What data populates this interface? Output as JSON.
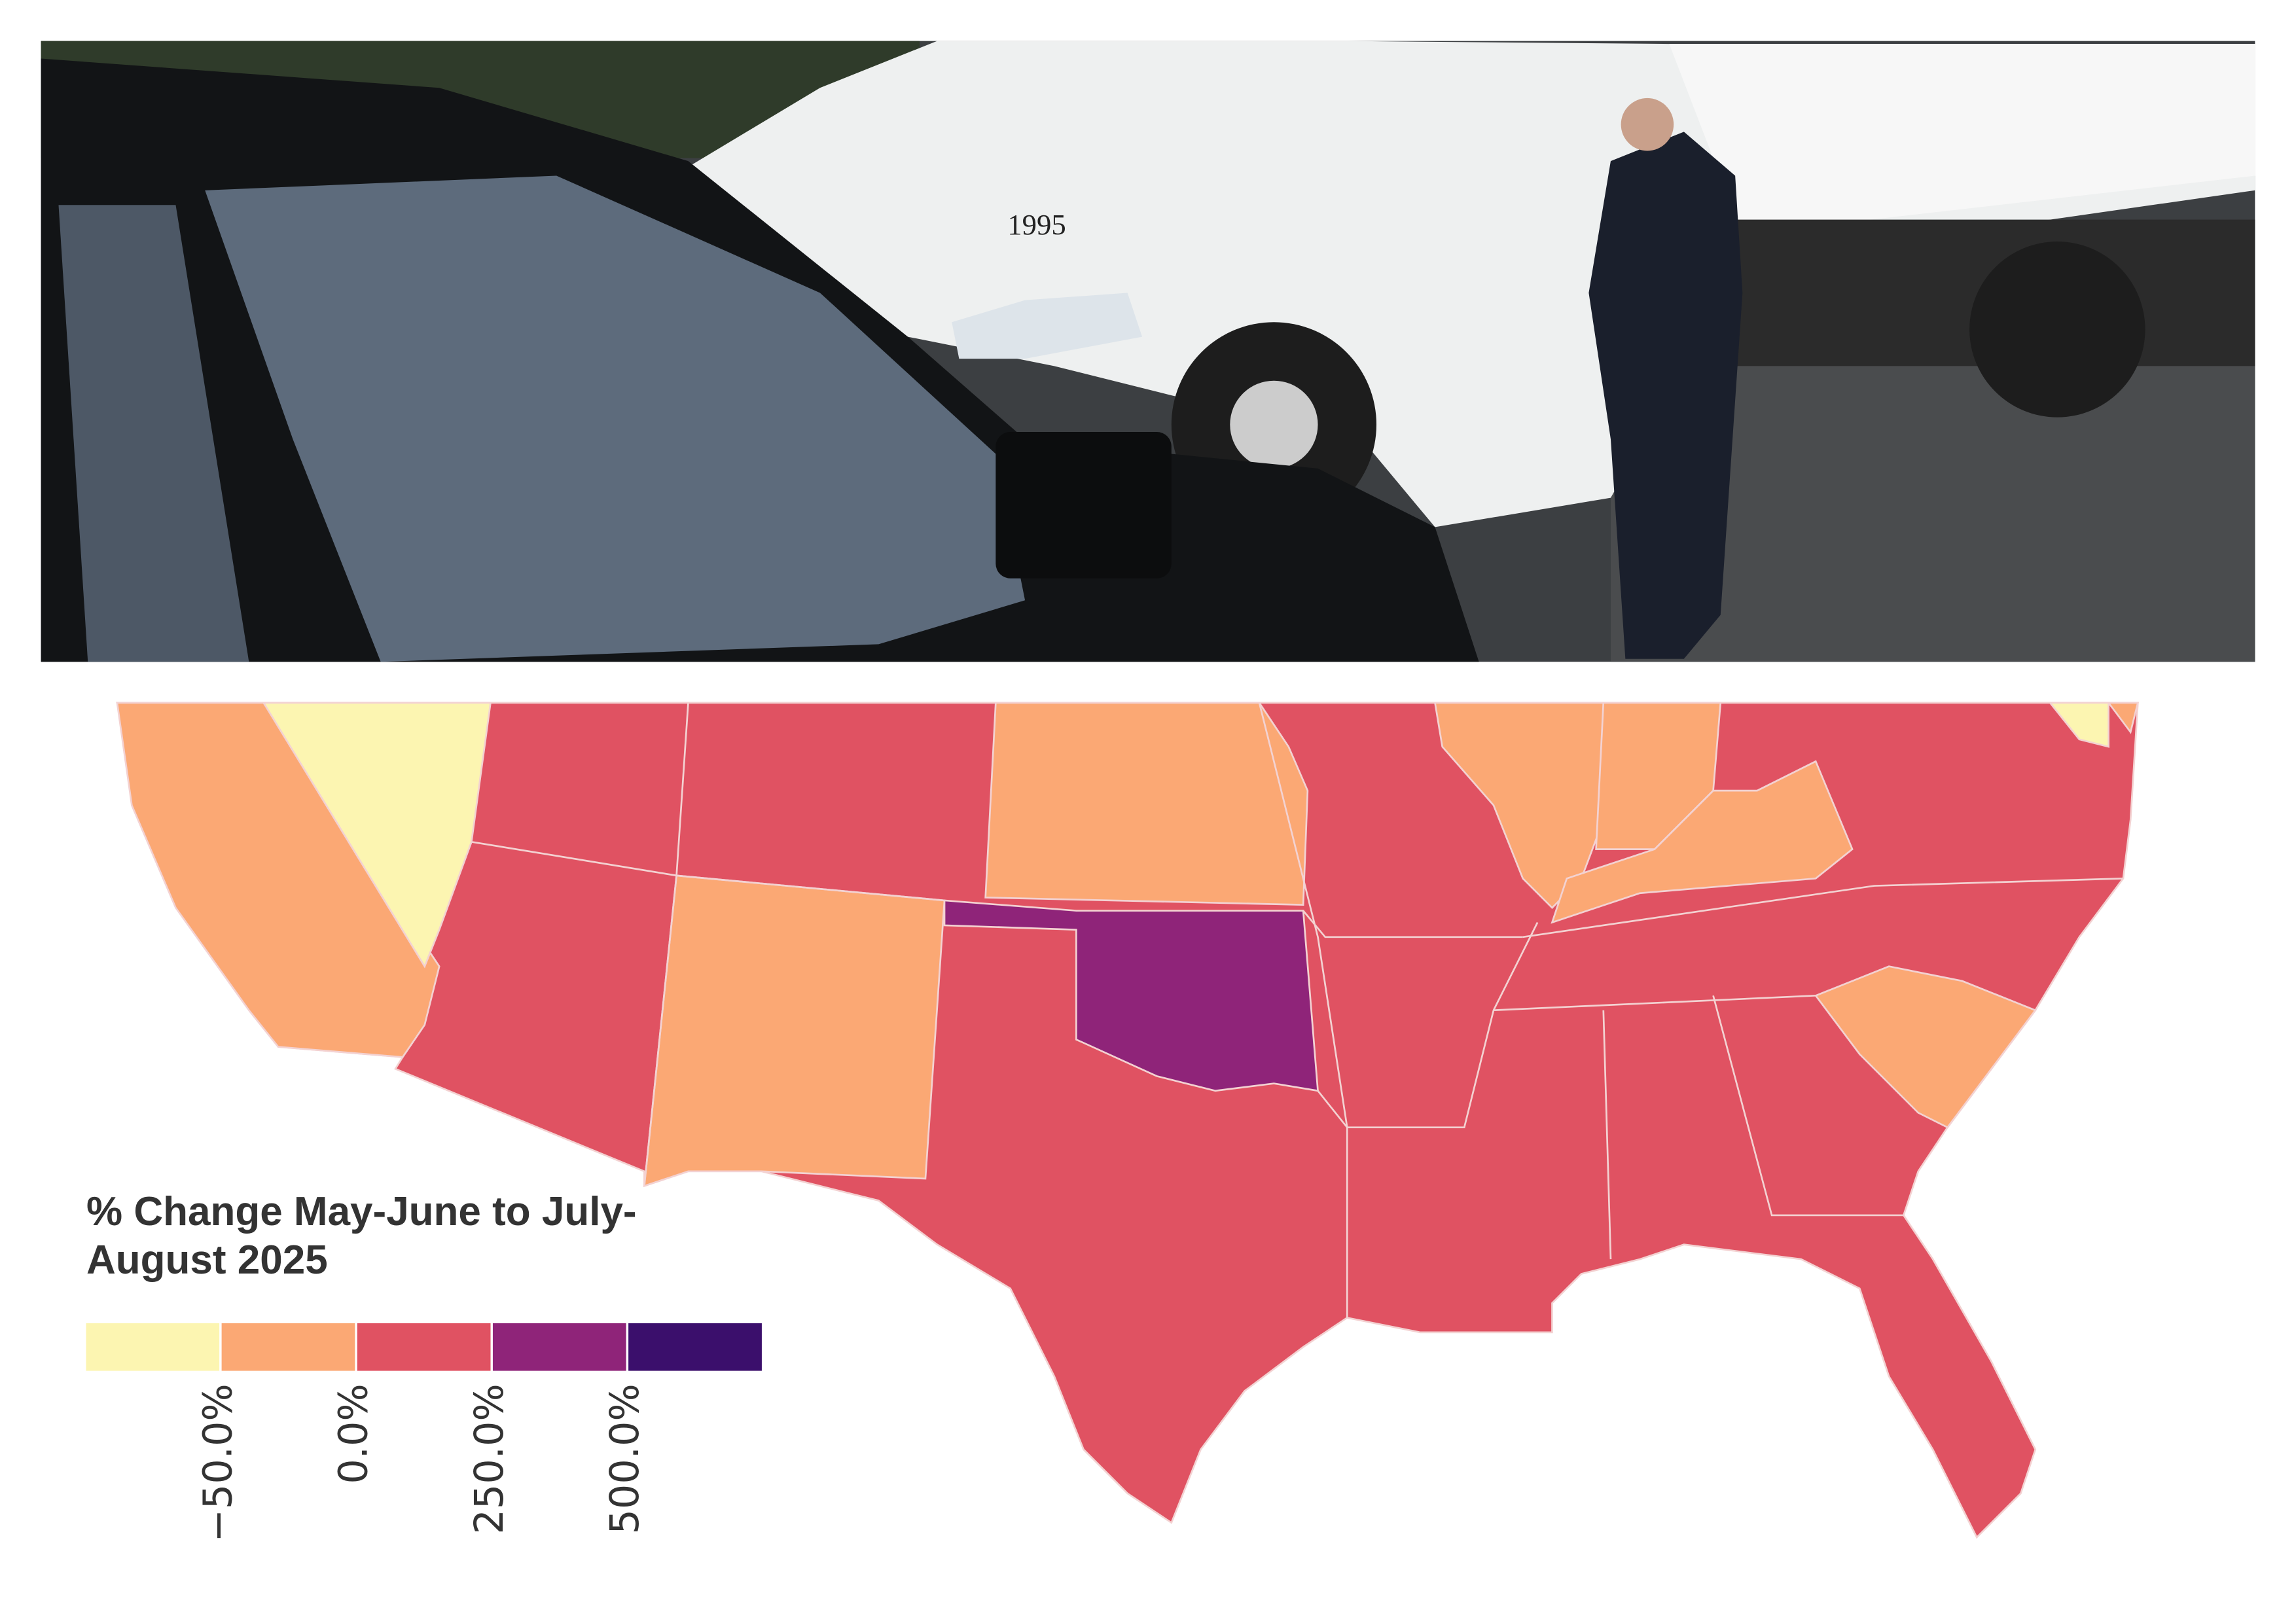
{
  "photo": {
    "truck_number": "1995"
  },
  "legend": {
    "title": "% Change May-June to July-August 2025",
    "colors": [
      "#fcf5b1",
      "#fba874",
      "#e05262",
      "#8f2479",
      "#3b0f6c"
    ],
    "ticks": [
      "−50.0%",
      "0.0%",
      "250.0%",
      "500.0%"
    ]
  }
}
